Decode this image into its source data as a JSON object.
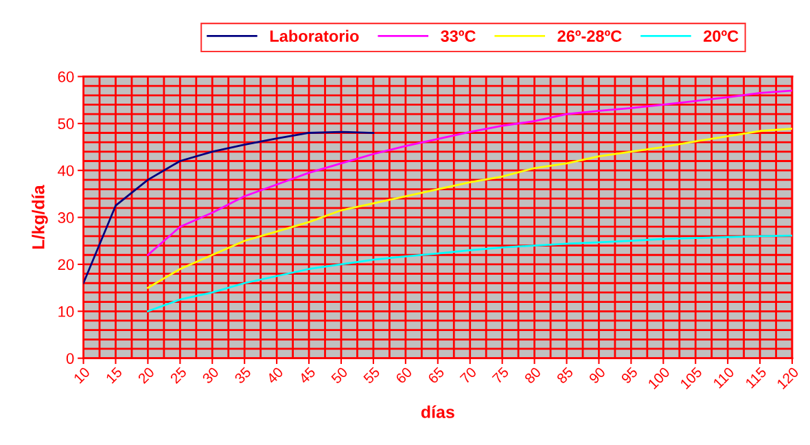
{
  "chart_data": {
    "type": "line",
    "xlabel": "días",
    "ylabel": "L/kg/día",
    "xlim": [
      10,
      120
    ],
    "xticks": [
      10,
      15,
      20,
      25,
      30,
      35,
      40,
      45,
      50,
      55,
      60,
      65,
      70,
      75,
      80,
      85,
      90,
      95,
      100,
      105,
      110,
      115,
      120
    ],
    "ylim": [
      0,
      60
    ],
    "yticks": [
      0,
      10,
      20,
      30,
      40,
      50,
      60
    ],
    "grid": true,
    "legend": "top",
    "marker": "none",
    "line_style": "solid",
    "series": [
      {
        "name": "Laboratorio",
        "color": "#000080",
        "x": [
          10,
          15,
          20,
          25,
          30,
          35,
          40,
          45,
          50,
          55
        ],
        "values": [
          16,
          32.5,
          38,
          42,
          44,
          45.5,
          46.8,
          48,
          48.2,
          48
        ]
      },
      {
        "name": "33ºC",
        "color": "#ff00ff",
        "x": [
          20,
          25,
          30,
          35,
          40,
          45,
          50,
          55,
          60,
          65,
          70,
          75,
          80,
          85,
          90,
          95,
          100,
          105,
          110,
          115,
          120
        ],
        "values": [
          22,
          28,
          31,
          34.5,
          37,
          39.5,
          41.5,
          43.5,
          45.2,
          46.7,
          48.2,
          49.5,
          50.5,
          52,
          52.7,
          53.3,
          54,
          54.8,
          55.6,
          56.5,
          57
        ]
      },
      {
        "name": "26º-28ºC",
        "color": "#ffff00",
        "x": [
          20,
          25,
          30,
          35,
          40,
          45,
          50,
          55,
          60,
          65,
          70,
          75,
          80,
          85,
          90,
          95,
          100,
          105,
          110,
          115,
          120
        ],
        "values": [
          15,
          19,
          22,
          25,
          27,
          29,
          31.5,
          33,
          34.5,
          36,
          37.5,
          38.7,
          40.5,
          41.5,
          43,
          44,
          45,
          46.2,
          47.3,
          48.4,
          48.9
        ]
      },
      {
        "name": "20ºC",
        "color": "#00ffff",
        "x": [
          20,
          25,
          30,
          35,
          40,
          45,
          50,
          55,
          60,
          65,
          70,
          75,
          80,
          85,
          90,
          95,
          100,
          105,
          110,
          115,
          120
        ],
        "values": [
          10,
          12.5,
          14,
          16,
          17.5,
          19,
          20,
          21,
          21.7,
          22.3,
          23,
          23.6,
          24,
          24.4,
          24.7,
          25,
          25.4,
          25.6,
          25.8,
          26,
          26.1
        ]
      }
    ]
  }
}
